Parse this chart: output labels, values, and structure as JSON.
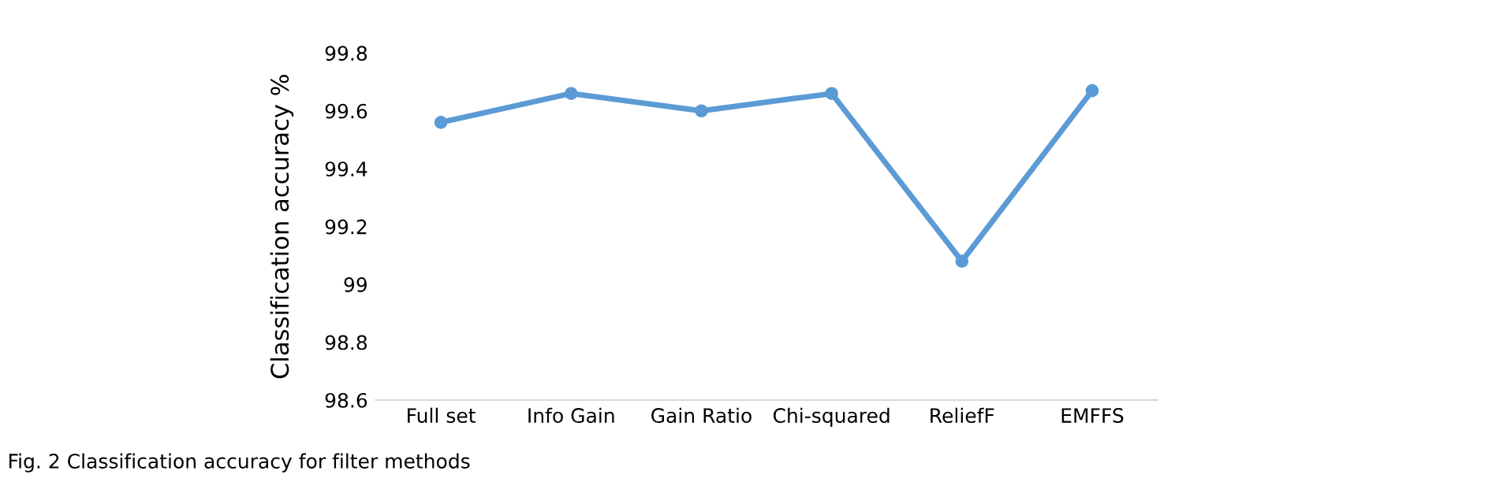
{
  "chart_data": {
    "type": "line",
    "ylabel": "Classification accuracy %",
    "categories": [
      "Full set",
      "Info Gain",
      "Gain Ratio",
      "Chi-squared",
      "ReliefF",
      "EMFFS"
    ],
    "series": [
      {
        "color": "#5b9bd5",
        "values": [
          99.56,
          99.66,
          99.6,
          99.66,
          99.08,
          99.67
        ]
      }
    ],
    "ylim": [
      98.6,
      99.8
    ],
    "yticks": [
      98.6,
      98.8,
      99,
      99.2,
      99.4,
      99.6,
      99.8
    ],
    "marker": "circle",
    "line_style": "solid",
    "grid": false,
    "annotations": [
      "Fig. 2 Classification accuracy for filter methods"
    ]
  }
}
